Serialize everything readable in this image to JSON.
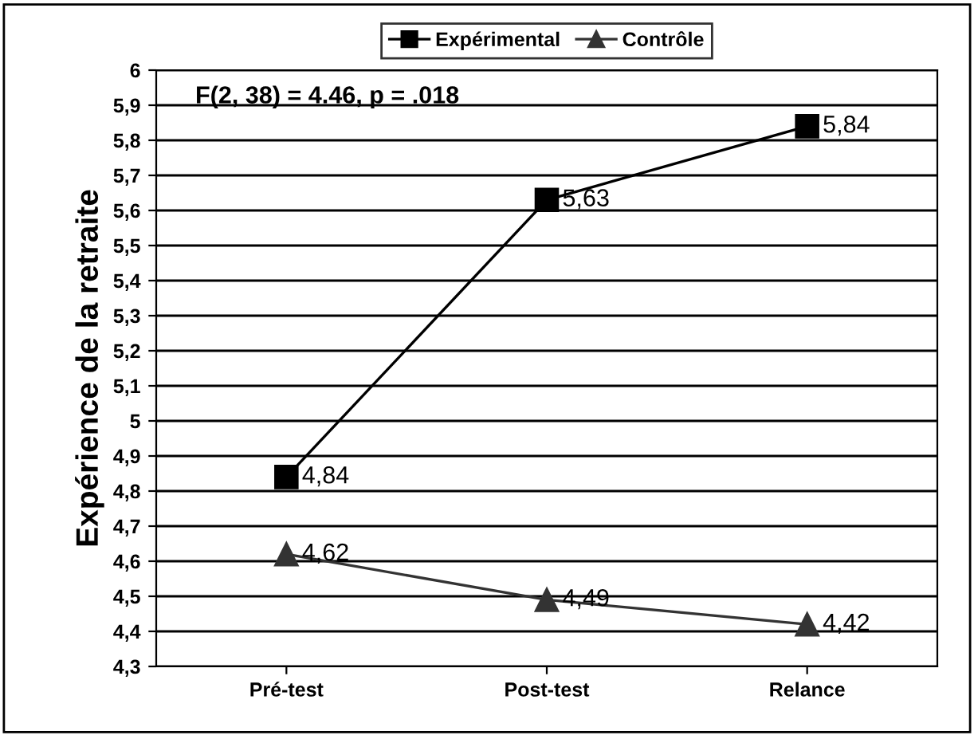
{
  "chart_data": {
    "type": "line",
    "ylabel": "Expérience de la retraite",
    "categories": [
      "Pré-test",
      "Post-test",
      "Relance"
    ],
    "series": [
      {
        "name": "Expérimental",
        "color": "#000000",
        "marker": "square",
        "values": [
          4.84,
          5.63,
          5.84
        ],
        "value_labels": [
          "4,84",
          "5,63",
          "5,84"
        ]
      },
      {
        "name": "Contrôle",
        "color": "#333333",
        "marker": "triangle",
        "values": [
          4.62,
          4.49,
          4.42
        ],
        "value_labels": [
          "4,62",
          "4,49",
          "4,42"
        ]
      }
    ],
    "ylim": [
      4.3,
      6
    ],
    "yticks": [
      {
        "value": 4.3,
        "label": "4,3"
      },
      {
        "value": 4.4,
        "label": "4,4"
      },
      {
        "value": 4.5,
        "label": "4,5"
      },
      {
        "value": 4.6,
        "label": "4,6"
      },
      {
        "value": 4.7,
        "label": "4,7"
      },
      {
        "value": 4.8,
        "label": "4,8"
      },
      {
        "value": 4.9,
        "label": "4,9"
      },
      {
        "value": 5,
        "label": "5"
      },
      {
        "value": 5.1,
        "label": "5,1"
      },
      {
        "value": 5.2,
        "label": "5,2"
      },
      {
        "value": 5.3,
        "label": "5,3"
      },
      {
        "value": 5.4,
        "label": "5,4"
      },
      {
        "value": 5.5,
        "label": "5,5"
      },
      {
        "value": 5.6,
        "label": "5,6"
      },
      {
        "value": 5.7,
        "label": "5,7"
      },
      {
        "value": 5.8,
        "label": "5,8"
      },
      {
        "value": 5.9,
        "label": "5,9"
      },
      {
        "value": 6,
        "label": "6"
      }
    ],
    "grid": "y",
    "legend": "top",
    "line_style": "solid",
    "annotations": [
      "F(2, 38) = 4.46, p = .018"
    ]
  }
}
